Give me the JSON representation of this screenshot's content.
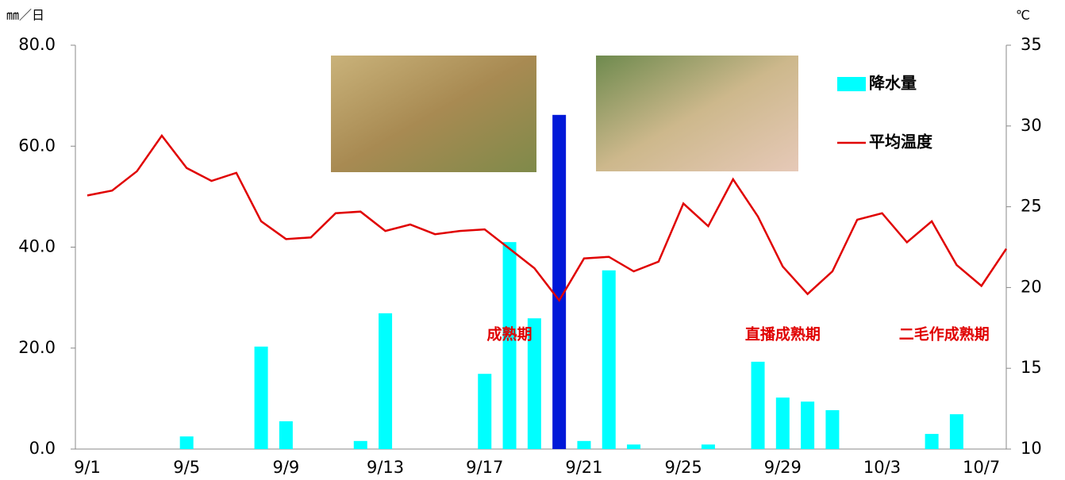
{
  "chart_data": {
    "type": "bar-line",
    "y_unit": "㎜／日",
    "y2_unit": "℃",
    "categories": [
      "9/1",
      null,
      null,
      null,
      "9/5",
      null,
      null,
      null,
      "9/9",
      null,
      null,
      null,
      "9/13",
      null,
      null,
      null,
      "9/17",
      null,
      null,
      null,
      "9/21",
      null,
      null,
      null,
      "9/25",
      null,
      null,
      null,
      "9/29",
      null,
      null,
      null,
      "10/3",
      null,
      null,
      null,
      "10/7",
      null
    ],
    "series": [
      {
        "name": "降水量",
        "type": "bar",
        "color": "#00ffff",
        "colors": [
          "#00ffff",
          "#00ffff",
          "#00ffff",
          "#00ffff",
          "#00ffff",
          "#00ffff",
          "#00ffff",
          "#00ffff",
          "#00ffff",
          "#00ffff",
          "#00ffff",
          "#00ffff",
          "#00ffff",
          "#00ffff",
          "#00ffff",
          "#00ffff",
          "#00ffff",
          "#00ffff",
          "#00ffff",
          "#0018d8",
          "#00ffff",
          "#00ffff",
          "#00ffff",
          "#00ffff",
          "#00ffff",
          "#00ffff",
          "#00ffff",
          "#00ffff",
          "#00ffff",
          "#00ffff",
          "#00ffff",
          "#00ffff",
          "#00ffff",
          "#00ffff",
          "#00ffff",
          "#00ffff",
          "#00ffff",
          "#00ffff"
        ],
        "values": [
          0,
          0,
          0,
          0,
          2.5,
          0,
          0,
          20.3,
          5.5,
          0,
          0,
          1.6,
          26.9,
          0,
          0,
          0,
          14.9,
          41.0,
          25.9,
          66.2,
          1.6,
          35.4,
          0.9,
          0,
          0,
          0.9,
          0,
          17.3,
          10.2,
          9.4,
          7.7,
          0,
          0,
          0,
          3.0,
          6.9,
          0,
          0
        ]
      },
      {
        "name": "平均温度",
        "type": "line",
        "axis": "y2",
        "color": "#e00000",
        "values": [
          25.7,
          26.0,
          27.2,
          29.4,
          27.4,
          26.6,
          27.1,
          24.1,
          23.0,
          23.1,
          24.6,
          24.7,
          23.5,
          23.9,
          23.3,
          23.5,
          23.6,
          22.4,
          21.2,
          19.2,
          21.8,
          21.9,
          21.0,
          21.6,
          25.2,
          23.8,
          26.7,
          24.4,
          21.3,
          19.6,
          21.0,
          24.2,
          24.6,
          22.8,
          24.1,
          21.4,
          20.1,
          22.4
        ]
      }
    ],
    "ylim": [
      0,
      80
    ],
    "yticks": [
      {
        "value": 0,
        "label": "0.0"
      },
      {
        "value": 20,
        "label": "20.0"
      },
      {
        "value": 40,
        "label": "40.0"
      },
      {
        "value": 60,
        "label": "60.0"
      },
      {
        "value": 80,
        "label": "80.0"
      }
    ],
    "y2lim": [
      10,
      35
    ],
    "y2ticks": [
      10,
      15,
      20,
      25,
      30,
      35
    ],
    "grid": false,
    "legend": "top-right",
    "annotations": [
      {
        "text": "成熟期",
        "index": 17
      },
      {
        "text": "直播成熟期",
        "index": 28
      },
      {
        "text": "二毛作成熟期",
        "index": 34.5
      }
    ]
  }
}
